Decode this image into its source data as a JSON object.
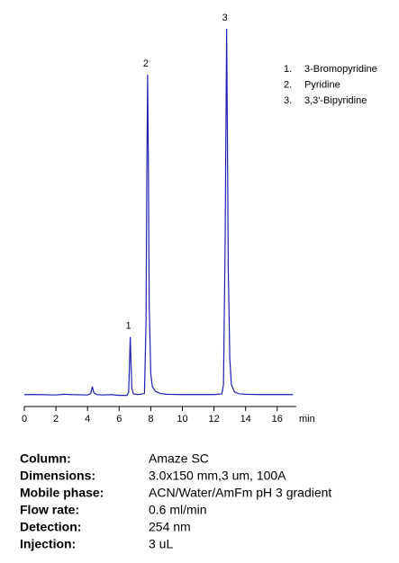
{
  "chart_data": {
    "type": "line",
    "x_label": "min",
    "xlim": [
      0,
      17.2
    ],
    "xticks": [
      0,
      2,
      4,
      6,
      8,
      10,
      12,
      14,
      16
    ],
    "series": [
      {
        "color": "#1f1fb4",
        "x": [
          0,
          1,
          2,
          2.5,
          3,
          4,
          4.2,
          4.3,
          4.4,
          4.6,
          5,
          5.5,
          6,
          6.5,
          6.6,
          6.65,
          6.7,
          6.75,
          6.8,
          6.9,
          7.2,
          7.6,
          7.7,
          7.75,
          7.8,
          7.85,
          7.9,
          8.0,
          8.1,
          8.3,
          8.6,
          9,
          10,
          11,
          12,
          12.5,
          12.6,
          12.7,
          12.8,
          12.85,
          12.9,
          13.0,
          13.1,
          13.3,
          13.6,
          14,
          15,
          16,
          17
        ],
        "values": [
          0.3,
          0.3,
          0.2,
          0.4,
          0.3,
          0.2,
          0.6,
          2.5,
          0.8,
          0.3,
          0.2,
          0.3,
          0.1,
          0.1,
          1.0,
          8,
          16,
          9,
          2,
          0.5,
          0.3,
          0.6,
          20,
          60,
          87.5,
          62,
          25,
          6,
          2.5,
          1.2,
          0.6,
          0.4,
          0.3,
          0.3,
          0.3,
          0.5,
          3,
          40,
          100,
          70,
          35,
          10,
          3,
          1,
          0.5,
          0.4,
          0.3,
          0.3,
          0.3
        ]
      }
    ],
    "annotations": [
      {
        "text": "1",
        "x": 6.7,
        "y": 16
      },
      {
        "text": "2",
        "x": 7.8,
        "y": 87.5
      },
      {
        "text": "3",
        "x": 12.8,
        "y": 100
      }
    ],
    "legend_items": [
      {
        "number": "1.",
        "name": "3-Bromopyridine"
      },
      {
        "number": "2.",
        "name": "Pyridine"
      },
      {
        "number": "3.",
        "name": "3,3'-Bipyridine"
      }
    ]
  },
  "method": [
    [
      "Column:",
      "Amaze SC"
    ],
    [
      "Dimensions:",
      "3.0x150 mm,3 um, 100A"
    ],
    [
      "Mobile phase:",
      "ACN/Water/AmFm pH 3 gradient"
    ],
    [
      "Flow rate:",
      "0.6 ml/min"
    ],
    [
      "Detection:",
      "254 nm"
    ],
    [
      "Injection:",
      "3 uL"
    ]
  ]
}
